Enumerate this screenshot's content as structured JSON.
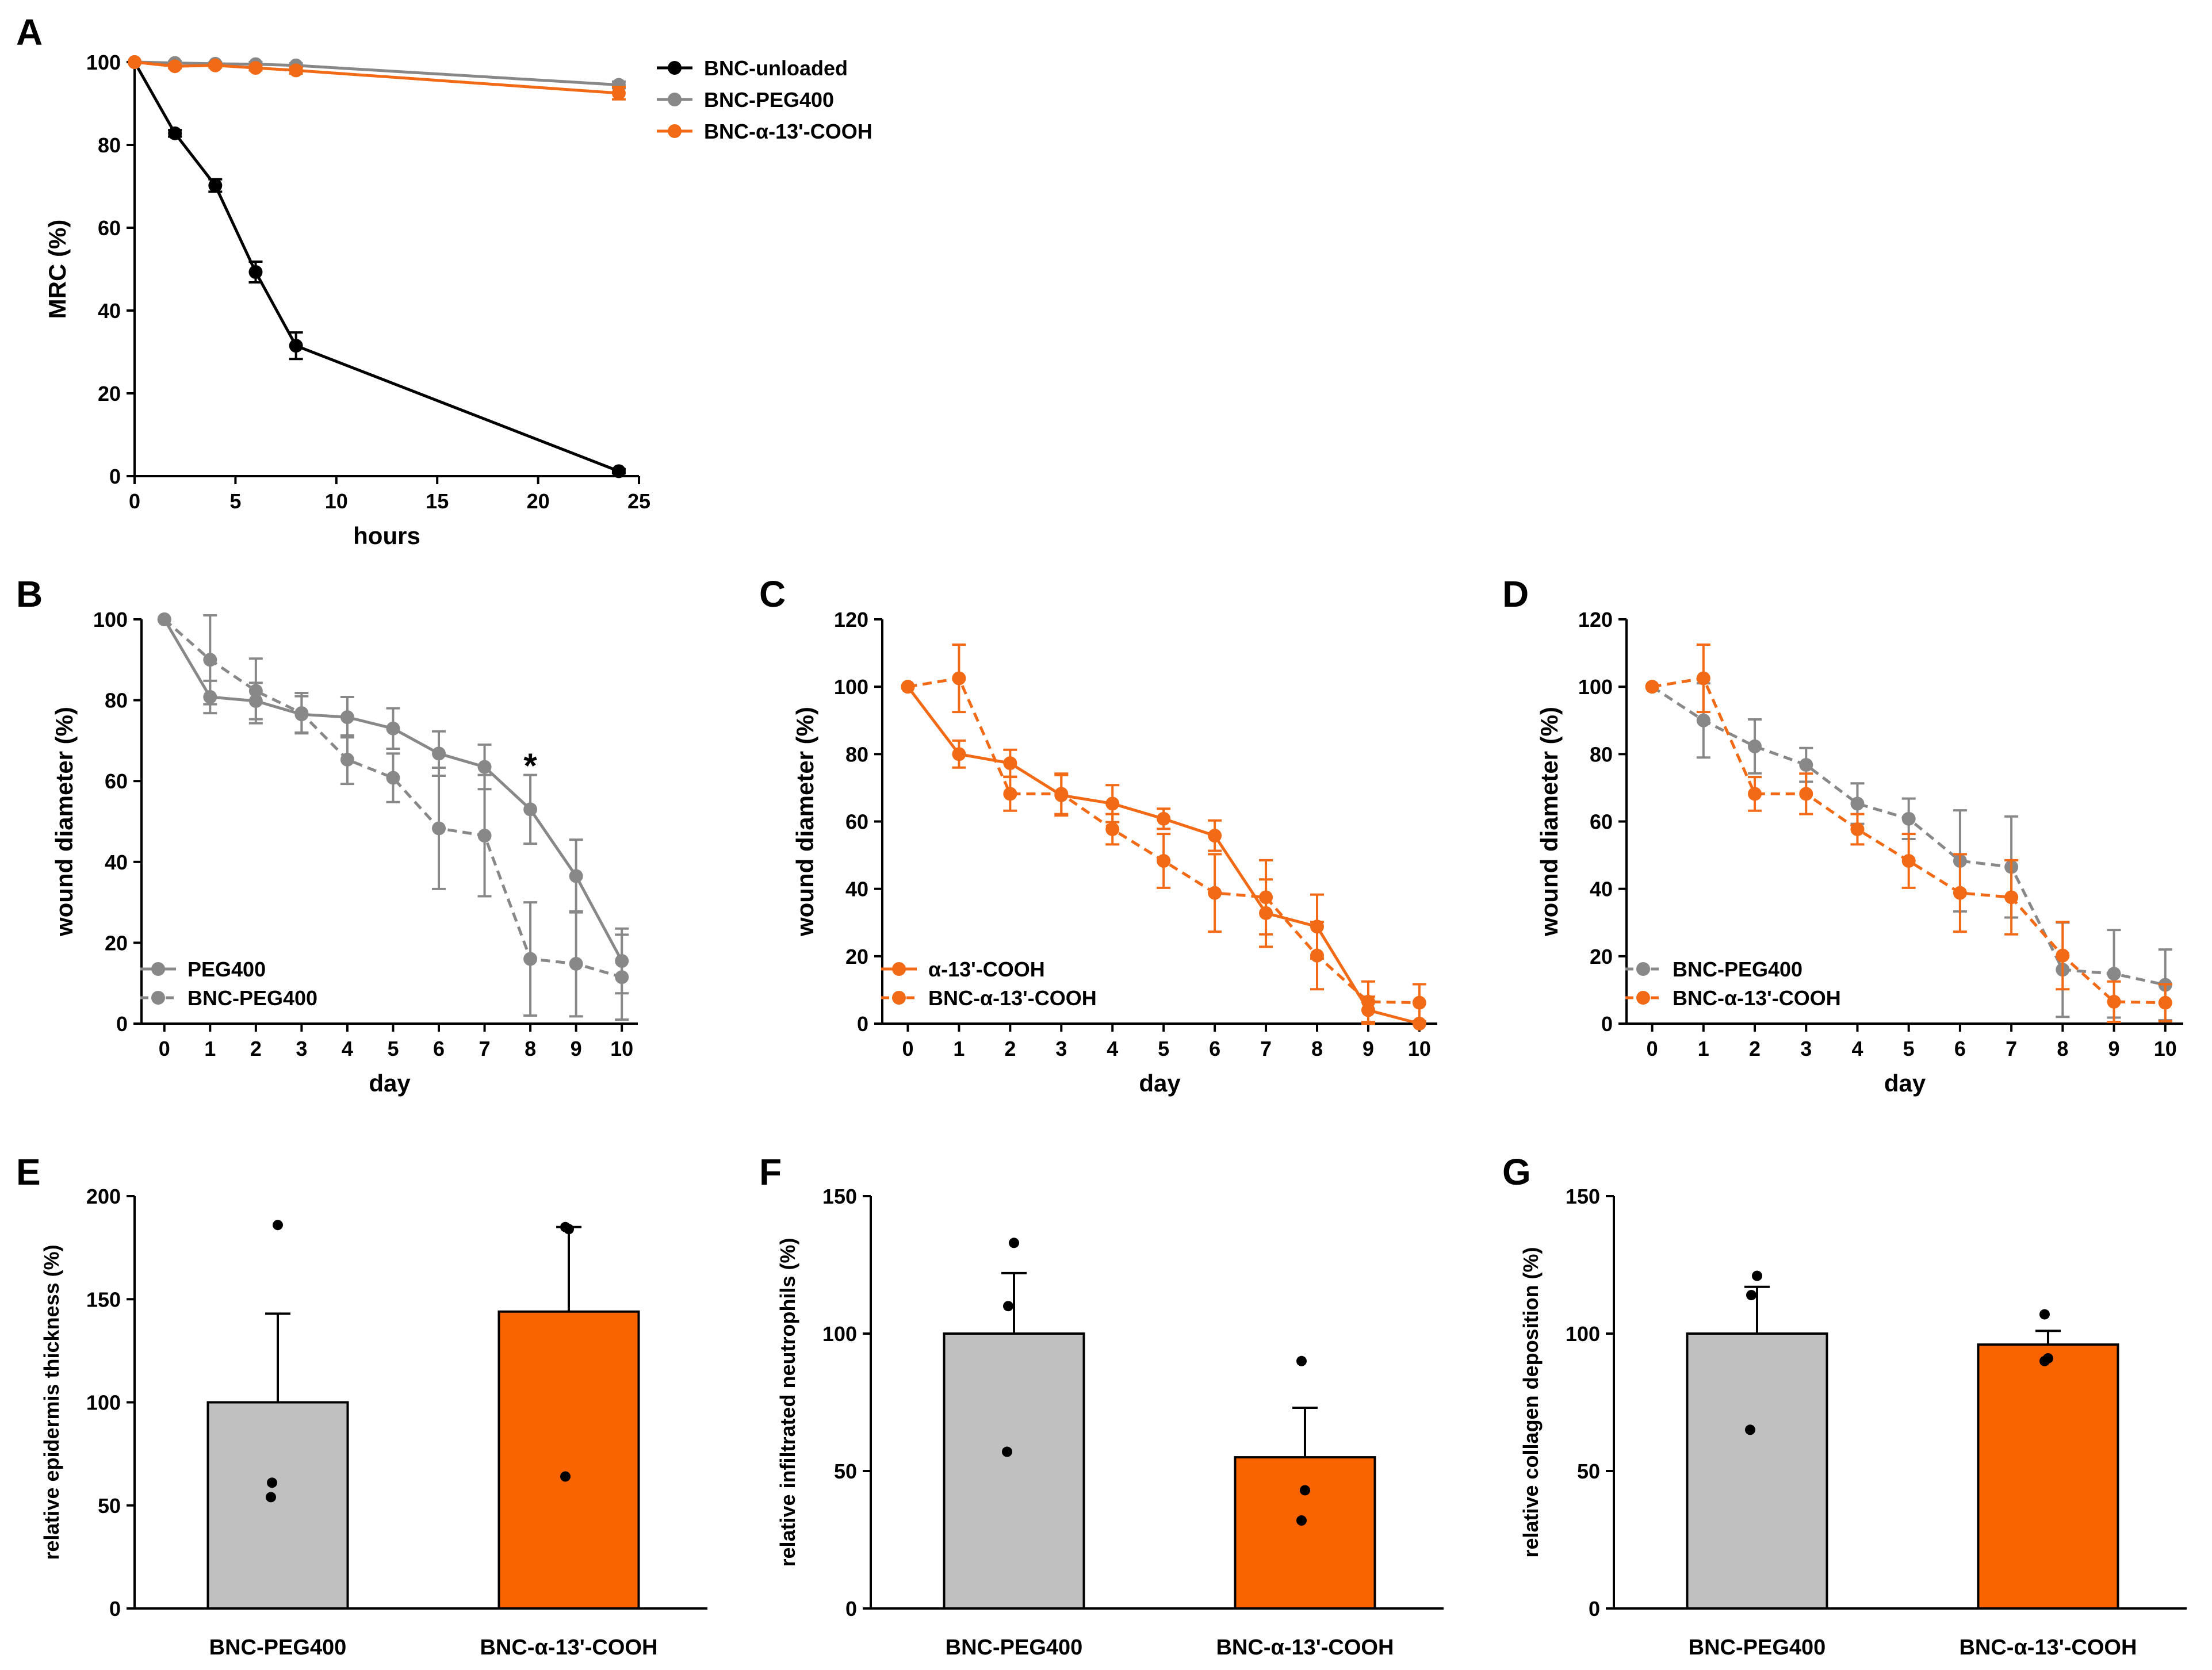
{
  "colors": {
    "black": "#000000",
    "gray": "#888888",
    "orange": "#f26a16",
    "bar_gray": "#c0c0c0",
    "bar_orange": "#f96400"
  },
  "chart_data": [
    {
      "panel": "A",
      "type": "line",
      "xlabel": "hours",
      "ylabel": "MRC (%)",
      "xlim": [
        0,
        25
      ],
      "ylim": [
        0,
        100
      ],
      "xticks": [
        0,
        5,
        10,
        15,
        20,
        25
      ],
      "yticks": [
        0,
        20,
        40,
        60,
        80,
        100
      ],
      "legend_position": "top-right",
      "series": [
        {
          "name": "BNC-unloaded",
          "color": "black",
          "style": "solid",
          "x": [
            0,
            2,
            4,
            6,
            8,
            24
          ],
          "y": [
            100,
            82.8,
            70.2,
            49.3,
            31.5,
            1.2
          ],
          "err": [
            0,
            0.8,
            1.5,
            2.5,
            3.2,
            0.5
          ]
        },
        {
          "name": "BNC-PEG400",
          "color": "gray",
          "style": "solid",
          "x": [
            0,
            2,
            4,
            6,
            8,
            24
          ],
          "y": [
            100,
            99.8,
            99.6,
            99.5,
            99.2,
            94.5
          ],
          "err": [
            0,
            0.4,
            0.4,
            0.5,
            0.5,
            0.8
          ]
        },
        {
          "name": "BNC-α-13'-COOH",
          "color": "orange",
          "style": "solid",
          "x": [
            0,
            2,
            4,
            6,
            8,
            24
          ],
          "y": [
            100,
            99,
            99.2,
            98.6,
            98,
            92.5
          ],
          "err": [
            0,
            0.5,
            0.5,
            0.6,
            0.8,
            1.5
          ]
        }
      ]
    },
    {
      "panel": "B",
      "type": "line",
      "xlabel": "day",
      "ylabel": "wound diameter (%)",
      "xlim": [
        0,
        10
      ],
      "ylim": [
        0,
        100
      ],
      "xticks": [
        0,
        1,
        2,
        3,
        4,
        5,
        6,
        7,
        8,
        9,
        10
      ],
      "yticks": [
        0,
        20,
        40,
        60,
        80,
        100
      ],
      "legend_position": "bottom-left",
      "annotations": [
        {
          "text": "*",
          "x": 8,
          "y": 64
        }
      ],
      "series": [
        {
          "name": "PEG400",
          "color": "gray",
          "style": "solid",
          "x": [
            0,
            1,
            2,
            3,
            4,
            5,
            6,
            7,
            8,
            9,
            10
          ],
          "y": [
            100,
            80.8,
            79.8,
            76.5,
            75.8,
            73,
            66.8,
            63.5,
            53,
            36.5,
            15.5
          ],
          "err": [
            0,
            4,
            4.5,
            4.5,
            5,
            5,
            5.5,
            5.5,
            8.5,
            9,
            8
          ]
        },
        {
          "name": "BNC-PEG400",
          "color": "gray",
          "style": "dashed",
          "x": [
            0,
            1,
            2,
            3,
            4,
            5,
            6,
            7,
            8,
            9,
            10
          ],
          "y": [
            100,
            90,
            82.3,
            76.8,
            65.3,
            60.8,
            48.3,
            46.5,
            16,
            14.8,
            11.5
          ],
          "err": [
            0,
            11,
            8,
            5,
            6,
            6,
            15,
            15,
            14,
            13,
            10.5
          ]
        }
      ]
    },
    {
      "panel": "C",
      "type": "line",
      "xlabel": "day",
      "ylabel": "wound diameter (%)",
      "xlim": [
        0,
        10
      ],
      "ylim": [
        0,
        120
      ],
      "xticks": [
        0,
        1,
        2,
        3,
        4,
        5,
        6,
        7,
        8,
        9,
        10
      ],
      "yticks": [
        0,
        20,
        40,
        60,
        80,
        100,
        120
      ],
      "legend_position": "bottom-left",
      "series": [
        {
          "name": "α-13'-COOH",
          "color": "orange",
          "style": "solid",
          "x": [
            0,
            1,
            2,
            3,
            4,
            5,
            6,
            7,
            8,
            9,
            10
          ],
          "y": [
            100,
            80,
            77.3,
            67.8,
            65.3,
            60.8,
            55.8,
            32.8,
            28.8,
            4,
            0
          ],
          "err": [
            0,
            4,
            4,
            6,
            5.5,
            3,
            4.5,
            10,
            9.5,
            4,
            0
          ]
        },
        {
          "name": "BNC-α-13'-COOH",
          "color": "orange",
          "style": "dashed",
          "x": [
            0,
            1,
            2,
            3,
            4,
            5,
            6,
            7,
            8,
            9,
            10
          ],
          "y": [
            100,
            102.5,
            68.2,
            68.2,
            57.7,
            48.3,
            38.8,
            37.5,
            20.2,
            6.5,
            6.2
          ],
          "err": [
            0,
            10,
            5,
            6,
            4.5,
            8,
            11.5,
            11,
            10,
            6,
            5.5
          ]
        }
      ]
    },
    {
      "panel": "D",
      "type": "line",
      "xlabel": "day",
      "ylabel": "wound diameter (%)",
      "xlim": [
        0,
        10
      ],
      "ylim": [
        0,
        120
      ],
      "xticks": [
        0,
        1,
        2,
        3,
        4,
        5,
        6,
        7,
        8,
        9,
        10
      ],
      "yticks": [
        0,
        20,
        40,
        60,
        80,
        100,
        120
      ],
      "legend_position": "bottom-left",
      "series": [
        {
          "name": "BNC-PEG400",
          "color": "gray",
          "style": "dashed",
          "x": [
            0,
            1,
            2,
            3,
            4,
            5,
            6,
            7,
            8,
            9,
            10
          ],
          "y": [
            100,
            90,
            82.3,
            76.8,
            65.3,
            60.8,
            48.3,
            46.5,
            16,
            14.8,
            11.5
          ],
          "err": [
            0,
            11,
            8,
            5,
            6,
            6,
            15,
            15,
            14,
            13,
            10.5
          ]
        },
        {
          "name": "BNC-α-13'-COOH",
          "color": "orange",
          "style": "dashed",
          "x": [
            0,
            1,
            2,
            3,
            4,
            5,
            6,
            7,
            8,
            9,
            10
          ],
          "y": [
            100,
            102.5,
            68.2,
            68.2,
            57.7,
            48.3,
            38.8,
            37.5,
            20.2,
            6.5,
            6.2
          ],
          "err": [
            0,
            10,
            5,
            6,
            4.5,
            8,
            11.5,
            11,
            10,
            6,
            5.5
          ]
        }
      ]
    },
    {
      "panel": "E",
      "type": "bar",
      "ylabel": "relative epidermis thickness (%)",
      "ylim": [
        0,
        200
      ],
      "yticks": [
        0,
        50,
        100,
        150,
        200
      ],
      "categories": [
        "BNC-PEG400",
        "BNC-α-13'-COOH"
      ],
      "values": [
        100,
        144
      ],
      "errors": [
        43,
        41
      ],
      "bar_colors": [
        "bar_gray",
        "bar_orange"
      ],
      "points": [
        [
          186,
          61,
          54
        ],
        [
          185,
          184,
          64
        ]
      ]
    },
    {
      "panel": "F",
      "type": "bar",
      "ylabel": "relative infiltrated neutrophils (%)",
      "ylim": [
        0,
        150
      ],
      "yticks": [
        0,
        50,
        100,
        150
      ],
      "categories": [
        "BNC-PEG400",
        "BNC-α-13'-COOH"
      ],
      "values": [
        100,
        55
      ],
      "errors": [
        22,
        18
      ],
      "bar_colors": [
        "bar_gray",
        "bar_orange"
      ],
      "points": [
        [
          133,
          110,
          57
        ],
        [
          90,
          43,
          32
        ]
      ]
    },
    {
      "panel": "G",
      "type": "bar",
      "ylabel": "relative collagen deposition (%)",
      "ylim": [
        0,
        150
      ],
      "yticks": [
        0,
        50,
        100,
        150
      ],
      "categories": [
        "BNC-PEG400",
        "BNC-α-13'-COOH"
      ],
      "values": [
        100,
        96
      ],
      "errors": [
        17,
        5
      ],
      "bar_colors": [
        "bar_gray",
        "bar_orange"
      ],
      "points": [
        [
          121,
          114,
          65
        ],
        [
          107,
          91,
          90
        ]
      ]
    }
  ]
}
